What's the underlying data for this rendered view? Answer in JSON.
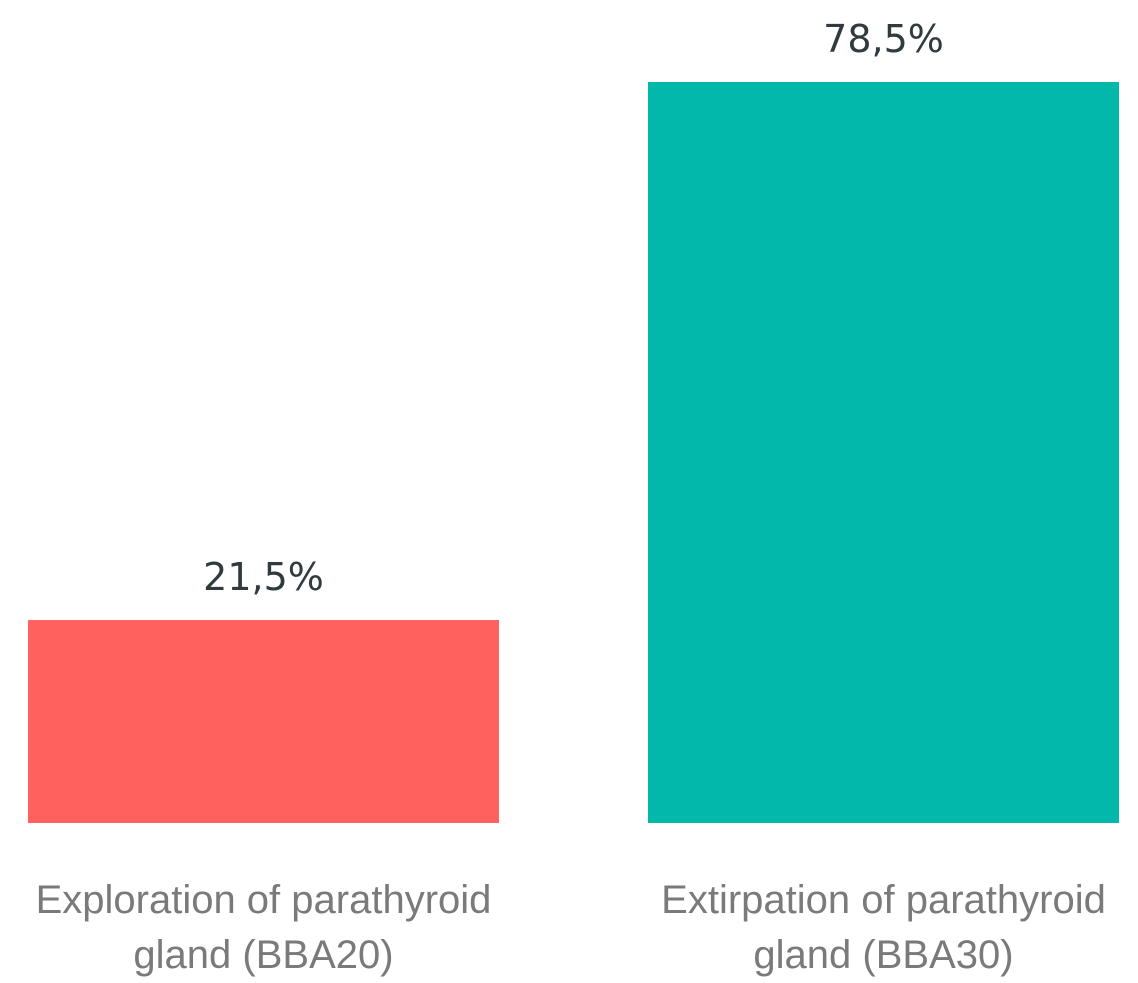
{
  "chart_data": {
    "type": "bar",
    "categories": [
      [
        "Exploration of parathyroid",
        "gland (BBA20)"
      ],
      [
        "Extirpation of parathyroid",
        "gland (BBA30)"
      ]
    ],
    "values": [
      21.5,
      78.5
    ],
    "value_labels": [
      "21,5%",
      "78,5%"
    ],
    "colors": [
      "#FF625E",
      "#01B8AA"
    ],
    "ylim": [
      0,
      78.5
    ],
    "grid": false,
    "legend": "none"
  }
}
